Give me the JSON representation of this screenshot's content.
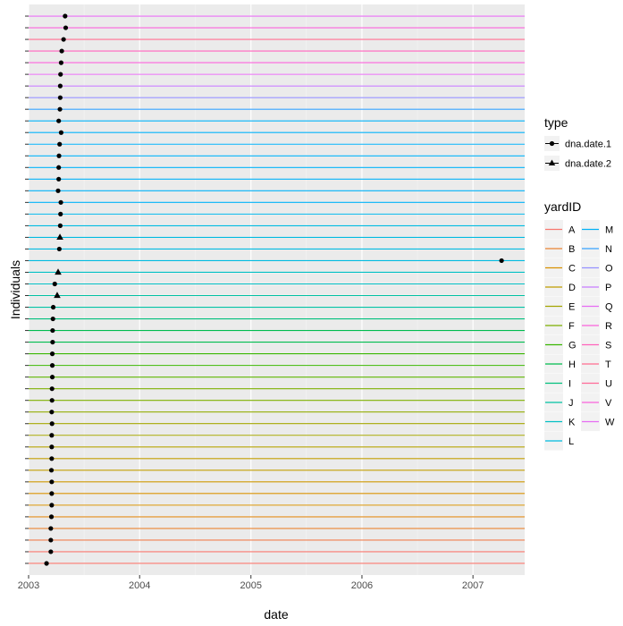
{
  "chart_data": {
    "type": "scatter",
    "xlabel": "date",
    "ylabel": "Individuals",
    "x_axis": {
      "type": "date",
      "range": [
        "2003-01-01",
        "2007-06-20"
      ],
      "ticks": [
        "2003-01-01",
        "2004-01-01",
        "2005-01-01",
        "2006-01-01",
        "2007-01-01"
      ],
      "tick_labels": [
        "2003",
        "2004",
        "2005",
        "2006",
        "2007"
      ],
      "grid": true
    },
    "y_axis": {
      "tick_labels_shown": false,
      "grid": true
    },
    "panel_background": "#ebebeb",
    "legend_position": "right",
    "legends": {
      "type": {
        "title": "type",
        "entries": [
          {
            "label": "dna.date.1",
            "shape": "circle"
          },
          {
            "label": "dna.date.2",
            "shape": "triangle"
          }
        ]
      },
      "yardID": {
        "title": "yardID",
        "columns": 2,
        "entries": [
          {
            "label": "A",
            "color": "#f8766d"
          },
          {
            "label": "B",
            "color": "#ea8331"
          },
          {
            "label": "C",
            "color": "#d89000"
          },
          {
            "label": "D",
            "color": "#c09b00"
          },
          {
            "label": "E",
            "color": "#a3a500"
          },
          {
            "label": "F",
            "color": "#7cae00"
          },
          {
            "label": "G",
            "color": "#39b600"
          },
          {
            "label": "H",
            "color": "#00bb4e"
          },
          {
            "label": "I",
            "color": "#00bf7d"
          },
          {
            "label": "J",
            "color": "#00c1a3"
          },
          {
            "label": "K",
            "color": "#00bfc4"
          },
          {
            "label": "L",
            "color": "#00bae0"
          },
          {
            "label": "M",
            "color": "#00b0f6"
          },
          {
            "label": "N",
            "color": "#35a2ff"
          },
          {
            "label": "O",
            "color": "#9590ff"
          },
          {
            "label": "P",
            "color": "#c77cff"
          },
          {
            "label": "Q",
            "color": "#e76bf3"
          },
          {
            "label": "R",
            "color": "#fa62db"
          },
          {
            "label": "S",
            "color": "#ff62bc"
          },
          {
            "label": "T",
            "color": "#ff6c91"
          },
          {
            "label": "U",
            "color": "#ff6a98"
          },
          {
            "label": "V",
            "color": "#fa62db"
          },
          {
            "label": "W",
            "color": "#e76bf3"
          }
        ]
      }
    },
    "individuals": [
      {
        "color": "#f8766d",
        "points": [
          {
            "date": "2003-03-01",
            "type": "dna.date.1"
          }
        ]
      },
      {
        "color": "#f8766d",
        "points": [
          {
            "date": "2003-03-15",
            "type": "dna.date.1"
          }
        ]
      },
      {
        "color": "#f07e4e",
        "points": [
          {
            "date": "2003-03-15",
            "type": "dna.date.1"
          }
        ]
      },
      {
        "color": "#ea8331",
        "points": [
          {
            "date": "2003-03-15",
            "type": "dna.date.1"
          }
        ]
      },
      {
        "color": "#e08a18",
        "points": [
          {
            "date": "2003-03-17",
            "type": "dna.date.1"
          }
        ]
      },
      {
        "color": "#d89000",
        "points": [
          {
            "date": "2003-03-18",
            "type": "dna.date.1"
          }
        ]
      },
      {
        "color": "#d89000",
        "points": [
          {
            "date": "2003-03-18",
            "type": "dna.date.1"
          }
        ]
      },
      {
        "color": "#cc9600",
        "points": [
          {
            "date": "2003-03-18",
            "type": "dna.date.1"
          }
        ]
      },
      {
        "color": "#c09b00",
        "points": [
          {
            "date": "2003-03-17",
            "type": "dna.date.1"
          }
        ]
      },
      {
        "color": "#c09b00",
        "points": [
          {
            "date": "2003-03-18",
            "type": "dna.date.1"
          }
        ]
      },
      {
        "color": "#b2a000",
        "points": [
          {
            "date": "2003-03-18",
            "type": "dna.date.1"
          }
        ]
      },
      {
        "color": "#a3a500",
        "points": [
          {
            "date": "2003-03-18",
            "type": "dna.date.1"
          }
        ]
      },
      {
        "color": "#a3a500",
        "points": [
          {
            "date": "2003-03-19",
            "type": "dna.date.1"
          }
        ]
      },
      {
        "color": "#90aa00",
        "points": [
          {
            "date": "2003-03-18",
            "type": "dna.date.1"
          }
        ]
      },
      {
        "color": "#7cae00",
        "points": [
          {
            "date": "2003-03-19",
            "type": "dna.date.1"
          }
        ]
      },
      {
        "color": "#7cae00",
        "points": [
          {
            "date": "2003-03-19",
            "type": "dna.date.1"
          }
        ]
      },
      {
        "color": "#5bb300",
        "points": [
          {
            "date": "2003-03-20",
            "type": "dna.date.1"
          }
        ]
      },
      {
        "color": "#39b600",
        "points": [
          {
            "date": "2003-03-20",
            "type": "dna.date.1"
          }
        ]
      },
      {
        "color": "#39b600",
        "points": [
          {
            "date": "2003-03-20",
            "type": "dna.date.1"
          }
        ]
      },
      {
        "color": "#00bb4e",
        "points": [
          {
            "date": "2003-03-21",
            "type": "dna.date.1"
          }
        ]
      },
      {
        "color": "#00bb4e",
        "points": [
          {
            "date": "2003-03-21",
            "type": "dna.date.1"
          }
        ]
      },
      {
        "color": "#00bf7d",
        "points": [
          {
            "date": "2003-03-22",
            "type": "dna.date.1"
          }
        ]
      },
      {
        "color": "#00c1a3",
        "points": [
          {
            "date": "2003-03-23",
            "type": "dna.date.1"
          }
        ]
      },
      {
        "color": "#00c1a3",
        "points": [
          {
            "date": "2003-04-05",
            "type": "dna.date.2"
          }
        ]
      },
      {
        "color": "#00bfc4",
        "points": [
          {
            "date": "2003-03-28",
            "type": "dna.date.1"
          }
        ]
      },
      {
        "color": "#00bfc4",
        "points": [
          {
            "date": "2003-04-08",
            "type": "dna.date.2"
          }
        ]
      },
      {
        "color": "#00bae0",
        "points": [
          {
            "date": "2007-04-05",
            "type": "dna.date.1"
          }
        ]
      },
      {
        "color": "#00bae0",
        "points": [
          {
            "date": "2003-04-12",
            "type": "dna.date.1"
          }
        ]
      },
      {
        "color": "#00bae0",
        "points": [
          {
            "date": "2003-04-14",
            "type": "dna.date.2"
          }
        ]
      },
      {
        "color": "#00bae0",
        "points": [
          {
            "date": "2003-04-15",
            "type": "dna.date.1"
          }
        ]
      },
      {
        "color": "#00b6ea",
        "points": [
          {
            "date": "2003-04-16",
            "type": "dna.date.1"
          }
        ]
      },
      {
        "color": "#00b0f6",
        "points": [
          {
            "date": "2003-04-17",
            "type": "dna.date.1"
          }
        ]
      },
      {
        "color": "#00b0f6",
        "points": [
          {
            "date": "2003-04-08",
            "type": "dna.date.1"
          }
        ]
      },
      {
        "color": "#00b0f6",
        "points": [
          {
            "date": "2003-04-10",
            "type": "dna.date.1"
          }
        ]
      },
      {
        "color": "#00b0f6",
        "points": [
          {
            "date": "2003-04-10",
            "type": "dna.date.1"
          }
        ]
      },
      {
        "color": "#00b0f6",
        "points": [
          {
            "date": "2003-04-11",
            "type": "dna.date.1"
          }
        ]
      },
      {
        "color": "#00b0f6",
        "points": [
          {
            "date": "2003-04-13",
            "type": "dna.date.1"
          }
        ]
      },
      {
        "color": "#00b0f6",
        "points": [
          {
            "date": "2003-04-18",
            "type": "dna.date.1"
          }
        ]
      },
      {
        "color": "#00b0f6",
        "points": [
          {
            "date": "2003-04-10",
            "type": "dna.date.1"
          }
        ]
      },
      {
        "color": "#35a2ff",
        "points": [
          {
            "date": "2003-04-14",
            "type": "dna.date.1"
          }
        ]
      },
      {
        "color": "#9590ff",
        "points": [
          {
            "date": "2003-04-15",
            "type": "dna.date.1"
          }
        ]
      },
      {
        "color": "#c77cff",
        "points": [
          {
            "date": "2003-04-15",
            "type": "dna.date.1"
          }
        ]
      },
      {
        "color": "#e76bf3",
        "points": [
          {
            "date": "2003-04-16",
            "type": "dna.date.1"
          }
        ]
      },
      {
        "color": "#fa62db",
        "points": [
          {
            "date": "2003-04-18",
            "type": "dna.date.1"
          }
        ]
      },
      {
        "color": "#ff62bc",
        "points": [
          {
            "date": "2003-04-20",
            "type": "dna.date.1"
          }
        ]
      },
      {
        "color": "#ff6c91",
        "points": [
          {
            "date": "2003-04-26",
            "type": "dna.date.1"
          }
        ]
      },
      {
        "color": "#fa62db",
        "points": [
          {
            "date": "2003-05-03",
            "type": "dna.date.1"
          }
        ]
      },
      {
        "color": "#e76bf3",
        "points": [
          {
            "date": "2003-05-01",
            "type": "dna.date.1"
          }
        ]
      }
    ]
  }
}
